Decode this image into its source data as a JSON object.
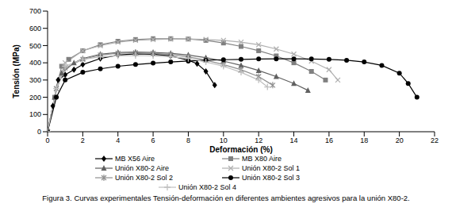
{
  "chart_data": {
    "type": "line",
    "title": "Figura 3. Curvas experimentales Tensión-deformación en diferentes ambientes agresivos para la unión X80-2.",
    "x_label": "Deformación (%)",
    "y_label": "Tensión (MPa)",
    "xlim": [
      0,
      22
    ],
    "xticks": [
      0,
      2,
      4,
      6,
      8,
      10,
      12,
      14,
      16,
      18,
      20,
      22
    ],
    "ylim": [
      0,
      700
    ],
    "yticks": [
      0,
      100,
      200,
      300,
      400,
      500,
      600,
      700
    ],
    "grid": false,
    "legend": "bottom",
    "series": [
      {
        "name": "MB X56 Aire",
        "color": "#000000",
        "marker": "diamond",
        "x": [
          0,
          0.3,
          0.6,
          1,
          1.5,
          2,
          3,
          4,
          5,
          6,
          7,
          8,
          8.5,
          9,
          9.5
        ],
        "values": [
          0,
          150,
          300,
          330,
          360,
          390,
          425,
          445,
          452,
          450,
          440,
          415,
          395,
          350,
          270
        ]
      },
      {
        "name": "MB X80 Aire",
        "color": "#808080",
        "marker": "square",
        "x": [
          0,
          0.4,
          0.8,
          1.2,
          2,
          3,
          4,
          5,
          6,
          7,
          8,
          9,
          10,
          11,
          12,
          13,
          14,
          15,
          15.8
        ],
        "values": [
          0,
          200,
          380,
          420,
          470,
          505,
          525,
          535,
          540,
          540,
          538,
          530,
          515,
          495,
          470,
          440,
          400,
          350,
          300
        ]
      },
      {
        "name": "Unión X80-2 Aire",
        "color": "#606060",
        "marker": "triangle",
        "x": [
          0,
          0.4,
          0.8,
          1.5,
          2,
          3,
          4,
          5,
          6,
          7,
          8,
          9,
          10,
          11,
          12,
          13,
          14,
          14.8
        ],
        "values": [
          0,
          200,
          340,
          400,
          425,
          450,
          460,
          462,
          460,
          455,
          445,
          430,
          410,
          385,
          355,
          320,
          280,
          240
        ]
      },
      {
        "name": "Unión X80-2 Sol 1",
        "color": "#b0b0b0",
        "marker": "x",
        "x": [
          0,
          0.5,
          1,
          2,
          3,
          4,
          5,
          6,
          7,
          8,
          9,
          10,
          11,
          12,
          13,
          14,
          15,
          16,
          16.5
        ],
        "values": [
          0,
          250,
          400,
          470,
          500,
          520,
          530,
          535,
          538,
          538,
          535,
          530,
          520,
          505,
          480,
          450,
          410,
          360,
          300
        ]
      },
      {
        "name": "Unión X80-2 Sol 2",
        "color": "#909090",
        "marker": "star",
        "x": [
          0,
          0.5,
          1,
          2,
          3,
          4,
          5,
          6,
          7,
          8,
          9,
          10,
          11,
          12,
          12.8
        ],
        "values": [
          0,
          250,
          370,
          420,
          445,
          455,
          458,
          455,
          448,
          435,
          415,
          390,
          360,
          320,
          270
        ]
      },
      {
        "name": "Unión X80-2 Sol 3",
        "color": "#000000",
        "marker": "circle",
        "x": [
          0,
          0.5,
          1,
          2,
          3,
          4,
          5,
          6,
          7,
          8,
          9,
          10,
          11,
          12,
          13,
          14,
          15,
          16,
          17,
          18,
          19,
          20,
          20.5,
          21
        ],
        "values": [
          0,
          200,
          300,
          345,
          365,
          380,
          390,
          398,
          405,
          410,
          415,
          418,
          420,
          422,
          423,
          423,
          422,
          420,
          415,
          405,
          385,
          340,
          280,
          200
        ]
      },
      {
        "name": "Unión X80-2 Sol 4",
        "color": "#c0c0c0",
        "marker": "plus",
        "x": [
          0,
          0.5,
          1,
          2,
          3,
          4,
          5,
          6,
          7,
          8,
          9,
          10,
          11,
          12,
          12.5
        ],
        "values": [
          0,
          250,
          380,
          420,
          435,
          440,
          442,
          440,
          435,
          425,
          405,
          380,
          345,
          300,
          260
        ]
      }
    ]
  }
}
